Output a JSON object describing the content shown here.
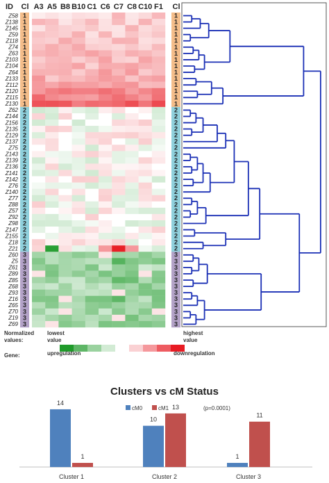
{
  "heatmap": {
    "id_header": "ID",
    "cl_header": "Cl",
    "columns": [
      "A3",
      "A5",
      "B8",
      "B10",
      "C1",
      "C6",
      "C7",
      "C8",
      "C10",
      "F1"
    ],
    "rows": [
      {
        "id": "Z58",
        "cluster": "1"
      },
      {
        "id": "Z138",
        "cluster": "1"
      },
      {
        "id": "Z145",
        "cluster": "1"
      },
      {
        "id": "Z59",
        "cluster": "1"
      },
      {
        "id": "Z118",
        "cluster": "1"
      },
      {
        "id": "Z74",
        "cluster": "1"
      },
      {
        "id": "Z63",
        "cluster": "1"
      },
      {
        "id": "Z103",
        "cluster": "1"
      },
      {
        "id": "Z104",
        "cluster": "1"
      },
      {
        "id": "Z64",
        "cluster": "1"
      },
      {
        "id": "Z133",
        "cluster": "1"
      },
      {
        "id": "Z112",
        "cluster": "1"
      },
      {
        "id": "Z120",
        "cluster": "1"
      },
      {
        "id": "Z115",
        "cluster": "1"
      },
      {
        "id": "Z130",
        "cluster": "1"
      },
      {
        "id": "Z62",
        "cluster": "2"
      },
      {
        "id": "Z144",
        "cluster": "2"
      },
      {
        "id": "Z156",
        "cluster": "2"
      },
      {
        "id": "Z135",
        "cluster": "2"
      },
      {
        "id": "Z129",
        "cluster": "2"
      },
      {
        "id": "Z137",
        "cluster": "2"
      },
      {
        "id": "Z75",
        "cluster": "2"
      },
      {
        "id": "Z143",
        "cluster": "2"
      },
      {
        "id": "Z139",
        "cluster": "2"
      },
      {
        "id": "Z136",
        "cluster": "2"
      },
      {
        "id": "Z141",
        "cluster": "2"
      },
      {
        "id": "Z142",
        "cluster": "2"
      },
      {
        "id": "Z76",
        "cluster": "2"
      },
      {
        "id": "Z140",
        "cluster": "2"
      },
      {
        "id": "Z77",
        "cluster": "2"
      },
      {
        "id": "Z88",
        "cluster": "2"
      },
      {
        "id": "Z57",
        "cluster": "2"
      },
      {
        "id": "Z92",
        "cluster": "2"
      },
      {
        "id": "Z98",
        "cluster": "2"
      },
      {
        "id": "Z147",
        "cluster": "2"
      },
      {
        "id": "Z155",
        "cluster": "2"
      },
      {
        "id": "Z18",
        "cluster": "2"
      },
      {
        "id": "Z21",
        "cluster": "2"
      },
      {
        "id": "Z60",
        "cluster": "3"
      },
      {
        "id": "Z5",
        "cluster": "3"
      },
      {
        "id": "Z61",
        "cluster": "3"
      },
      {
        "id": "Z89",
        "cluster": "3"
      },
      {
        "id": "Z85",
        "cluster": "3"
      },
      {
        "id": "Z68",
        "cluster": "3"
      },
      {
        "id": "Z93",
        "cluster": "3"
      },
      {
        "id": "Z16",
        "cluster": "3"
      },
      {
        "id": "Z65",
        "cluster": "3"
      },
      {
        "id": "Z70",
        "cluster": "3"
      },
      {
        "id": "Z19",
        "cluster": "3"
      },
      {
        "id": "Z69",
        "cluster": "3"
      }
    ],
    "cluster_colors": {
      "1": "#f4bd8a",
      "2": "#8fd0dc",
      "3": "#b3a2c7"
    },
    "scale_colors": {
      "up": "#1f9a2a",
      "neutral": "#ffffff",
      "down": "#e81b23"
    },
    "legend": {
      "normalized_label": "Normalized values:",
      "lowest": "lowest value",
      "highest": "highest value",
      "gene_label": "Gene:",
      "upregulation": "upregulation",
      "downregulation": "downregulation"
    }
  },
  "chart_data": {
    "type": "bar",
    "title": "Clusters vs cM Status",
    "categories": [
      "Cluster 1",
      "Cluster 2",
      "Cluster 3"
    ],
    "series": [
      {
        "name": "cM0",
        "values": [
          14,
          10,
          1
        ],
        "color": "#4f81bd"
      },
      {
        "name": "cM1",
        "values": [
          1,
          13,
          11
        ],
        "color": "#c0504d"
      }
    ],
    "annotation": "(p=0.0001)",
    "ylim": [
      0,
      15
    ],
    "grid": false,
    "legend_position": "top"
  }
}
